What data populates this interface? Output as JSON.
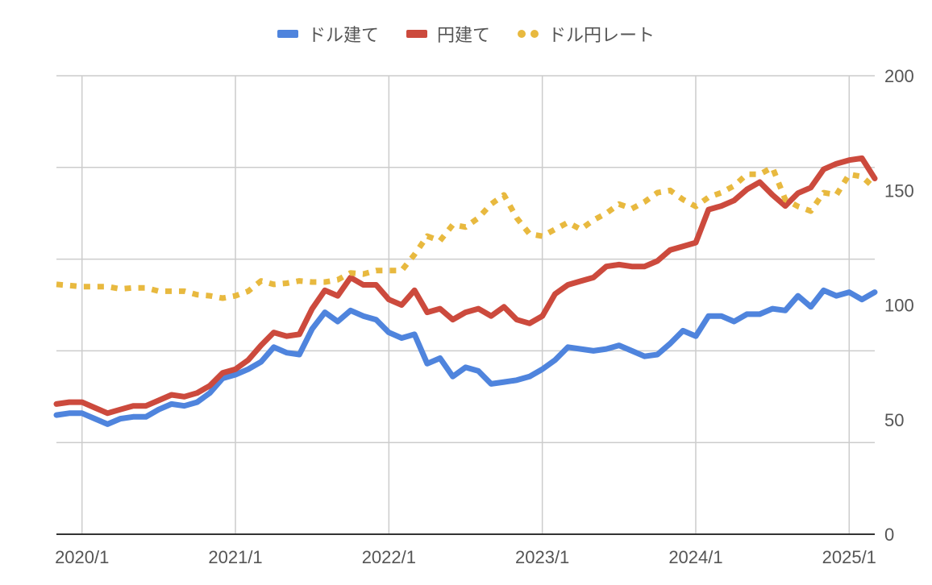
{
  "chart_data": {
    "type": "line",
    "legend_position": "top-center",
    "grid": true,
    "x_start": "2019-11",
    "x_tick_labels": [
      "2020/1",
      "2021/1",
      "2022/1",
      "2023/1",
      "2024/1",
      "2025/1"
    ],
    "x_tick_dates": [
      "2020-01",
      "2021-01",
      "2022-01",
      "2023-01",
      "2024-01",
      "2025-01"
    ],
    "x_range": [
      "2019-11",
      "2025-03"
    ],
    "left_axis": {
      "labels": [],
      "ylim": [
        0,
        250
      ]
    },
    "right_axis": {
      "labels": [
        "200",
        "150",
        "100",
        "50",
        "0"
      ],
      "ylim": [
        0,
        200
      ]
    },
    "series": [
      {
        "name": "ドル建て",
        "color": "#4f84dd",
        "style": "solid",
        "axis": "left",
        "dates": [
          "2019-11",
          "2019-12",
          "2020-01",
          "2020-02",
          "2020-03",
          "2020-04",
          "2020-05",
          "2020-06",
          "2020-07",
          "2020-08",
          "2020-09",
          "2020-10",
          "2020-11",
          "2020-12",
          "2021-01",
          "2021-02",
          "2021-03",
          "2021-04",
          "2021-05",
          "2021-06",
          "2021-07",
          "2021-08",
          "2021-09",
          "2021-10",
          "2021-11",
          "2021-12",
          "2022-01",
          "2022-02",
          "2022-03",
          "2022-04",
          "2022-05",
          "2022-06",
          "2022-07",
          "2022-08",
          "2022-09",
          "2022-10",
          "2022-11",
          "2022-12",
          "2023-01",
          "2023-02",
          "2023-03",
          "2023-04",
          "2023-05",
          "2023-06",
          "2023-07",
          "2023-08",
          "2023-09",
          "2023-10",
          "2023-11",
          "2023-12",
          "2024-01",
          "2024-02",
          "2024-03",
          "2024-04",
          "2024-05",
          "2024-06",
          "2024-07",
          "2024-08",
          "2024-09",
          "2024-10",
          "2024-11",
          "2024-12",
          "2025-01",
          "2025-02",
          "2025-03"
        ],
        "values": [
          65,
          66,
          66,
          63,
          60,
          63,
          64,
          64,
          68,
          71,
          70,
          72,
          77,
          85,
          87,
          90,
          94,
          102,
          99,
          98,
          112,
          121,
          116,
          122,
          119,
          117,
          110,
          107,
          109,
          93,
          96,
          86,
          91,
          89,
          82,
          83,
          84,
          86,
          90,
          95,
          102,
          101,
          100,
          101,
          103,
          100,
          97,
          98,
          104,
          111,
          108,
          119,
          119,
          116,
          120,
          120,
          123,
          122,
          130,
          124,
          133,
          130,
          132,
          128,
          132
        ]
      },
      {
        "name": "円建て",
        "color": "#cc4a3d",
        "style": "solid",
        "axis": "left",
        "dates": [
          "2019-11",
          "2019-12",
          "2020-01",
          "2020-02",
          "2020-03",
          "2020-04",
          "2020-05",
          "2020-06",
          "2020-07",
          "2020-08",
          "2020-09",
          "2020-10",
          "2020-11",
          "2020-12",
          "2021-01",
          "2021-02",
          "2021-03",
          "2021-04",
          "2021-05",
          "2021-06",
          "2021-07",
          "2021-08",
          "2021-09",
          "2021-10",
          "2021-11",
          "2021-12",
          "2022-01",
          "2022-02",
          "2022-03",
          "2022-04",
          "2022-05",
          "2022-06",
          "2022-07",
          "2022-08",
          "2022-09",
          "2022-10",
          "2022-11",
          "2022-12",
          "2023-01",
          "2023-02",
          "2023-03",
          "2023-04",
          "2023-05",
          "2023-06",
          "2023-07",
          "2023-08",
          "2023-09",
          "2023-10",
          "2023-11",
          "2023-12",
          "2024-01",
          "2024-02",
          "2024-03",
          "2024-04",
          "2024-05",
          "2024-06",
          "2024-07",
          "2024-08",
          "2024-09",
          "2024-10",
          "2024-11",
          "2024-12",
          "2025-01",
          "2025-02",
          "2025-03"
        ],
        "values": [
          71,
          72,
          72,
          69,
          66,
          68,
          70,
          70,
          73,
          76,
          75,
          77,
          81,
          88,
          90,
          95,
          103,
          110,
          108,
          109,
          123,
          133,
          130,
          140,
          136,
          136,
          128,
          125,
          133,
          121,
          123,
          117,
          121,
          123,
          119,
          124,
          117,
          115,
          119,
          131,
          136,
          138,
          140,
          146,
          147,
          146,
          146,
          149,
          155,
          157,
          159,
          177,
          179,
          182,
          188,
          192,
          185,
          179,
          186,
          189,
          199,
          202,
          204,
          205,
          194
        ]
      },
      {
        "name": "ドル円レート",
        "color": "#e8b93f",
        "style": "dotted",
        "axis": "right",
        "dates": [
          "2019-11",
          "2019-12",
          "2020-01",
          "2020-02",
          "2020-03",
          "2020-04",
          "2020-05",
          "2020-06",
          "2020-07",
          "2020-08",
          "2020-09",
          "2020-10",
          "2020-11",
          "2020-12",
          "2021-01",
          "2021-02",
          "2021-03",
          "2021-04",
          "2021-05",
          "2021-06",
          "2021-07",
          "2021-08",
          "2021-09",
          "2021-10",
          "2021-11",
          "2021-12",
          "2022-01",
          "2022-02",
          "2022-03",
          "2022-04",
          "2022-05",
          "2022-06",
          "2022-07",
          "2022-08",
          "2022-09",
          "2022-10",
          "2022-11",
          "2022-12",
          "2023-01",
          "2023-02",
          "2023-03",
          "2023-04",
          "2023-05",
          "2023-06",
          "2023-07",
          "2023-08",
          "2023-09",
          "2023-10",
          "2023-11",
          "2023-12",
          "2024-01",
          "2024-02",
          "2024-03",
          "2024-04",
          "2024-05",
          "2024-06",
          "2024-07",
          "2024-08",
          "2024-09",
          "2024-10",
          "2024-11",
          "2024-12",
          "2025-01",
          "2025-02",
          "2025-03"
        ],
        "values": [
          109,
          108.5,
          108,
          108,
          108,
          107,
          107.5,
          107.5,
          106,
          106,
          106,
          104.5,
          104,
          103,
          104,
          106,
          110.5,
          109,
          109.5,
          110.5,
          110,
          110,
          111,
          114,
          113.5,
          115,
          115,
          115,
          122,
          130,
          128,
          135,
          134,
          138,
          144,
          148,
          138,
          131,
          130,
          133,
          136,
          133,
          137,
          140,
          144,
          142,
          145,
          149,
          150,
          146,
          143,
          147,
          149,
          152,
          157,
          157,
          160,
          146,
          143,
          141,
          149,
          148,
          157,
          156,
          151
        ]
      }
    ]
  }
}
